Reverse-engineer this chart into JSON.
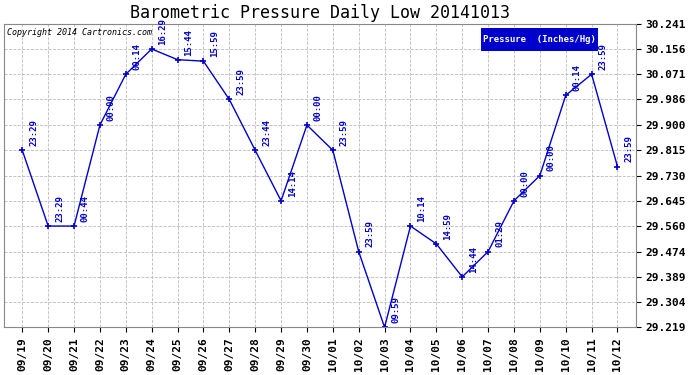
{
  "title": "Barometric Pressure Daily Low 20141013",
  "legend_label": "Pressure  (Inches/Hg)",
  "copyright": "Copyright 2014 Cartronics.com",
  "outer_bg_color": "#ffffff",
  "plot_bg_color": "#ffffff",
  "line_color": "#0000cc",
  "marker_color": "#0000cc",
  "legend_bg": "#0000cc",
  "legend_text_color": "#ffffff",
  "x_labels": [
    "09/19",
    "09/20",
    "09/21",
    "09/22",
    "09/23",
    "09/24",
    "09/25",
    "09/26",
    "09/27",
    "09/28",
    "09/29",
    "09/30",
    "10/01",
    "10/02",
    "10/03",
    "10/04",
    "10/05",
    "10/06",
    "10/07",
    "10/08",
    "10/09",
    "10/10",
    "10/11",
    "10/12"
  ],
  "y_values": [
    29.815,
    29.56,
    29.56,
    29.9,
    30.071,
    30.156,
    30.12,
    30.115,
    29.986,
    29.815,
    29.645,
    29.9,
    29.815,
    29.474,
    29.219,
    29.56,
    29.5,
    29.389,
    29.474,
    29.645,
    29.73,
    30.0,
    30.071,
    29.76
  ],
  "point_labels": [
    "23:29",
    "23:29",
    "00:44",
    "00:00",
    "00:14",
    "16:29",
    "15:44",
    "15:59",
    "23:59",
    "23:44",
    "14:14",
    "00:00",
    "23:59",
    "23:59",
    "09:59",
    "10:14",
    "14:59",
    "14:44",
    "01:29",
    "00:00",
    "00:00",
    "00:14",
    "23:59",
    "23:59"
  ],
  "ylim_min": 29.219,
  "ylim_max": 30.241,
  "yticks": [
    29.219,
    29.304,
    29.389,
    29.474,
    29.56,
    29.645,
    29.73,
    29.815,
    29.9,
    29.986,
    30.071,
    30.156,
    30.241
  ],
  "grid_color": "#bbbbbb",
  "title_fontsize": 12,
  "tick_fontsize": 8,
  "label_fontsize": 6.5,
  "copyright_fontsize": 6
}
